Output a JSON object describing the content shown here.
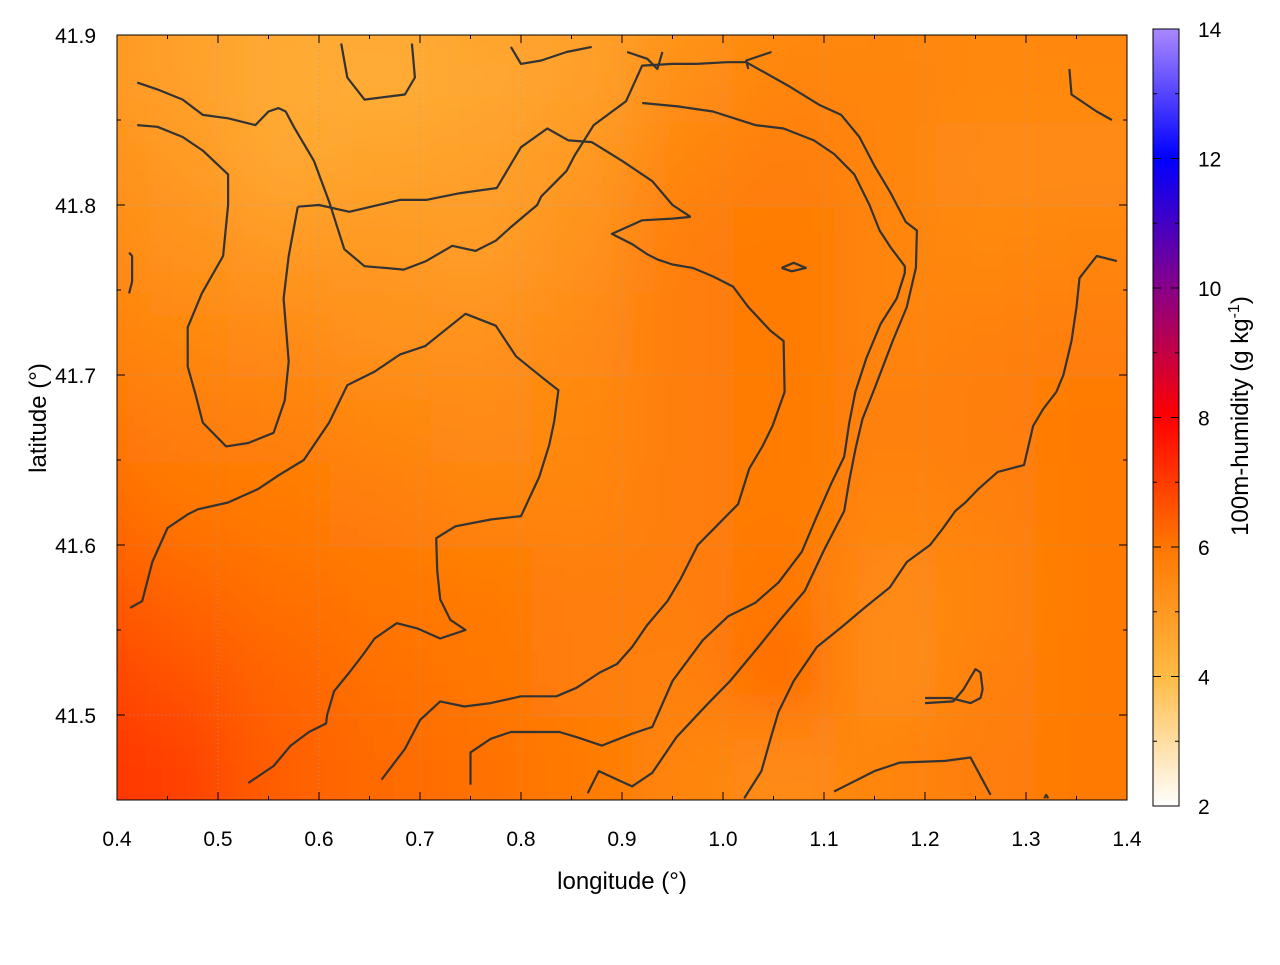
{
  "chart_data": {
    "type": "heatmap",
    "xlabel": "longitude (°)",
    "ylabel": "latitude (°)",
    "colorbar_label": "100m-humidity (g kg",
    "colorbar_label_sup": "-1",
    "colorbar_label_end": ")",
    "xlim": [
      0.4,
      1.4
    ],
    "ylim": [
      41.45,
      41.9
    ],
    "x_ticks": [
      "0.4",
      "0.5",
      "0.6",
      "0.7",
      "0.8",
      "0.9",
      "1.0",
      "1.1",
      "1.2",
      "1.3",
      "1.4"
    ],
    "y_ticks": [
      "41.5",
      "41.6",
      "41.7",
      "41.8",
      "41.9"
    ],
    "colorbar_ticks": [
      "2",
      "4",
      "6",
      "8",
      "10",
      "12",
      "14"
    ],
    "colorbar_range": [
      2,
      14
    ],
    "colormap": [
      "#ffffff",
      "#ffbb44",
      "#ff7700",
      "#ff0000",
      "#0000ff",
      "#aa88ff"
    ],
    "grid": true,
    "contour_color": "#333333",
    "field_x": [
      0.4,
      0.5,
      0.6,
      0.7,
      0.8,
      0.9,
      1.0,
      1.1,
      1.2,
      1.3,
      1.4
    ],
    "field_y": [
      41.9,
      41.85,
      41.8,
      41.75,
      41.7,
      41.65,
      41.6,
      41.55,
      41.5,
      41.45
    ],
    "field_values": [
      [
        5.0,
        4.8,
        4.6,
        4.6,
        4.7,
        4.8,
        5.1,
        5.4,
        5.5,
        5.5,
        5.6
      ],
      [
        5.1,
        4.8,
        4.5,
        4.4,
        4.6,
        4.8,
        5.3,
        5.6,
        5.6,
        5.5,
        5.5
      ],
      [
        5.3,
        5.0,
        4.6,
        4.7,
        4.8,
        5.0,
        5.6,
        5.8,
        5.6,
        5.4,
        5.4
      ],
      [
        5.5,
        5.2,
        5.0,
        5.0,
        4.9,
        5.2,
        5.8,
        5.9,
        5.6,
        5.5,
        5.6
      ],
      [
        5.7,
        5.5,
        5.4,
        5.2,
        5.2,
        5.4,
        5.8,
        5.9,
        5.6,
        5.7,
        5.8
      ],
      [
        6.0,
        5.8,
        5.7,
        5.5,
        5.4,
        5.5,
        5.8,
        5.9,
        5.7,
        5.8,
        5.9
      ],
      [
        6.3,
        6.0,
        5.9,
        5.8,
        5.6,
        5.6,
        5.8,
        5.9,
        5.6,
        5.7,
        5.9
      ],
      [
        6.6,
        6.3,
        6.1,
        6.0,
        5.9,
        5.8,
        5.8,
        6.0,
        5.4,
        5.6,
        5.9
      ],
      [
        6.9,
        6.6,
        6.3,
        6.1,
        6.0,
        5.8,
        5.7,
        6.2,
        5.3,
        5.7,
        5.9
      ],
      [
        7.2,
        6.9,
        6.4,
        6.2,
        6.1,
        5.9,
        5.6,
        5.4,
        5.6,
        5.8,
        5.9
      ]
    ],
    "contours": [
      [
        [
          0.42,
          41.872
        ],
        [
          0.44,
          41.868
        ],
        [
          0.465,
          41.862
        ],
        [
          0.485,
          41.853
        ],
        [
          0.51,
          41.851
        ],
        [
          0.537,
          41.847
        ],
        [
          0.55,
          41.855
        ],
        [
          0.56,
          41.857
        ],
        [
          0.567,
          41.855
        ],
        [
          0.575,
          41.846
        ],
        [
          0.595,
          41.826
        ],
        [
          0.61,
          41.802
        ],
        [
          0.625,
          41.774
        ],
        [
          0.645,
          41.764
        ],
        [
          0.665,
          41.763
        ],
        [
          0.684,
          41.762
        ],
        [
          0.706,
          41.767
        ],
        [
          0.732,
          41.776
        ],
        [
          0.755,
          41.773
        ],
        [
          0.775,
          41.779
        ],
        [
          0.79,
          41.787
        ],
        [
          0.802,
          41.793
        ],
        [
          0.816,
          41.8
        ],
        [
          0.82,
          41.805
        ],
        [
          0.835,
          41.814
        ],
        [
          0.845,
          41.82
        ],
        [
          0.853,
          41.829
        ],
        [
          0.872,
          41.847
        ],
        [
          0.904,
          41.861
        ],
        [
          0.92,
          41.882
        ],
        [
          0.95,
          41.883
        ],
        [
          0.974,
          41.883
        ],
        [
          1.004,
          41.884
        ],
        [
          1.023,
          41.884
        ],
        [
          1.065,
          41.87
        ],
        [
          1.095,
          41.859
        ],
        [
          1.117,
          41.853
        ],
        [
          1.135,
          41.84
        ],
        [
          1.15,
          41.823
        ],
        [
          1.166,
          41.807
        ],
        [
          1.181,
          41.79
        ],
        [
          1.192,
          41.785
        ],
        [
          1.191,
          41.763
        ],
        [
          1.182,
          41.74
        ],
        [
          1.168,
          41.72
        ],
        [
          1.15,
          41.692
        ],
        [
          1.138,
          41.674
        ],
        [
          1.131,
          41.656
        ],
        [
          1.125,
          41.638
        ],
        [
          1.12,
          41.62
        ],
        [
          1.1,
          41.597
        ],
        [
          1.081,
          41.573
        ],
        [
          1.058,
          41.557
        ],
        [
          1.035,
          41.54
        ],
        [
          1.007,
          41.52
        ],
        [
          0.984,
          41.506
        ],
        [
          0.954,
          41.487
        ],
        [
          0.93,
          41.466
        ],
        [
          0.91,
          41.458
        ],
        [
          0.877,
          41.467
        ],
        [
          0.866,
          41.454
        ]
      ],
      [
        [
          0.42,
          41.847
        ],
        [
          0.44,
          41.846
        ],
        [
          0.465,
          41.84
        ],
        [
          0.485,
          41.832
        ],
        [
          0.51,
          41.818
        ],
        [
          0.51,
          41.8
        ],
        [
          0.505,
          41.77
        ],
        [
          0.484,
          41.748
        ],
        [
          0.47,
          41.728
        ],
        [
          0.47,
          41.705
        ],
        [
          0.478,
          41.688
        ],
        [
          0.485,
          41.672
        ],
        [
          0.508,
          41.658
        ],
        [
          0.53,
          41.66
        ],
        [
          0.555,
          41.666
        ],
        [
          0.566,
          41.685
        ],
        [
          0.57,
          41.708
        ],
        [
          0.565,
          41.745
        ],
        [
          0.57,
          41.77
        ],
        [
          0.579,
          41.799
        ]
      ],
      [
        [
          0.579,
          41.799
        ],
        [
          0.6,
          41.8
        ],
        [
          0.63,
          41.796
        ],
        [
          0.68,
          41.803
        ],
        [
          0.706,
          41.803
        ],
        [
          0.74,
          41.807
        ],
        [
          0.776,
          41.81
        ],
        [
          0.8,
          41.834
        ],
        [
          0.826,
          41.845
        ],
        [
          0.847,
          41.838
        ],
        [
          0.87,
          41.837
        ],
        [
          0.9,
          41.826
        ],
        [
          0.93,
          41.814
        ],
        [
          0.95,
          41.8
        ],
        [
          0.968,
          41.793
        ]
      ],
      [
        [
          0.968,
          41.793
        ],
        [
          0.95,
          41.792
        ],
        [
          0.92,
          41.791
        ],
        [
          0.89,
          41.783
        ],
        [
          0.91,
          41.777
        ],
        [
          0.925,
          41.771
        ],
        [
          0.935,
          41.768
        ],
        [
          0.95,
          41.765
        ],
        [
          0.97,
          41.763
        ],
        [
          0.99,
          41.758
        ],
        [
          1.01,
          41.752
        ],
        [
          1.025,
          41.74
        ],
        [
          1.047,
          41.726
        ],
        [
          1.06,
          41.72
        ],
        [
          1.061,
          41.69
        ],
        [
          1.049,
          41.67
        ],
        [
          1.039,
          41.658
        ],
        [
          1.026,
          41.645
        ],
        [
          1.015,
          41.624
        ],
        [
          1.005,
          41.618
        ],
        [
          0.99,
          41.609
        ],
        [
          0.975,
          41.6
        ],
        [
          0.958,
          41.58
        ],
        [
          0.945,
          41.567
        ],
        [
          0.925,
          41.553
        ],
        [
          0.91,
          41.54
        ],
        [
          0.895,
          41.53
        ],
        [
          0.878,
          41.525
        ],
        [
          0.855,
          41.516
        ],
        [
          0.835,
          41.511
        ],
        [
          0.8,
          41.511
        ],
        [
          0.77,
          41.507
        ],
        [
          0.744,
          41.505
        ],
        [
          0.72,
          41.508
        ],
        [
          0.7,
          41.497
        ],
        [
          0.685,
          41.48
        ],
        [
          0.662,
          41.462
        ]
      ],
      [
        [
          0.413,
          41.563
        ],
        [
          0.425,
          41.567
        ],
        [
          0.435,
          41.59
        ],
        [
          0.45,
          41.61
        ],
        [
          0.47,
          41.618
        ],
        [
          0.48,
          41.621
        ],
        [
          0.51,
          41.625
        ],
        [
          0.54,
          41.633
        ],
        [
          0.56,
          41.641
        ],
        [
          0.585,
          41.65
        ],
        [
          0.61,
          41.672
        ],
        [
          0.628,
          41.694
        ],
        [
          0.655,
          41.702
        ],
        [
          0.68,
          41.712
        ],
        [
          0.705,
          41.717
        ],
        [
          0.724,
          41.726
        ],
        [
          0.745,
          41.736
        ],
        [
          0.775,
          41.729
        ],
        [
          0.795,
          41.711
        ],
        [
          0.82,
          41.699
        ],
        [
          0.837,
          41.691
        ],
        [
          0.833,
          41.673
        ],
        [
          0.828,
          41.659
        ],
        [
          0.818,
          41.64
        ],
        [
          0.8,
          41.617
        ],
        [
          0.77,
          41.615
        ],
        [
          0.735,
          41.611
        ],
        [
          0.716,
          41.604
        ],
        [
          0.717,
          41.585
        ],
        [
          0.72,
          41.568
        ],
        [
          0.73,
          41.556
        ],
        [
          0.745,
          41.55
        ],
        [
          0.72,
          41.545
        ],
        [
          0.697,
          41.551
        ],
        [
          0.677,
          41.554
        ],
        [
          0.655,
          41.545
        ],
        [
          0.643,
          41.535
        ],
        [
          0.63,
          41.525
        ],
        [
          0.615,
          41.514
        ],
        [
          0.608,
          41.5
        ],
        [
          0.607,
          41.495
        ],
        [
          0.59,
          41.49
        ],
        [
          0.572,
          41.482
        ],
        [
          0.555,
          41.47
        ],
        [
          0.53,
          41.46
        ]
      ],
      [
        [
          0.75,
          41.459
        ],
        [
          0.75,
          41.478
        ],
        [
          0.77,
          41.486
        ],
        [
          0.79,
          41.49
        ],
        [
          0.838,
          41.49
        ],
        [
          0.855,
          41.487
        ],
        [
          0.88,
          41.482
        ],
        [
          0.91,
          41.489
        ],
        [
          0.93,
          41.493
        ],
        [
          0.95,
          41.52
        ],
        [
          0.98,
          41.544
        ],
        [
          1.005,
          41.558
        ],
        [
          1.032,
          41.566
        ],
        [
          1.055,
          41.578
        ],
        [
          1.078,
          41.596
        ],
        [
          1.093,
          41.617
        ],
        [
          1.107,
          41.636
        ],
        [
          1.12,
          41.652
        ],
        [
          1.125,
          41.672
        ],
        [
          1.131,
          41.69
        ],
        [
          1.142,
          41.71
        ],
        [
          1.156,
          41.73
        ],
        [
          1.172,
          41.745
        ],
        [
          1.18,
          41.76
        ],
        [
          1.18,
          41.764
        ],
        [
          1.166,
          41.775
        ],
        [
          1.155,
          41.785
        ],
        [
          1.145,
          41.8
        ],
        [
          1.13,
          41.818
        ],
        [
          1.11,
          41.83
        ],
        [
          1.09,
          41.838
        ],
        [
          1.06,
          41.845
        ],
        [
          1.032,
          41.847
        ],
        [
          0.99,
          41.855
        ],
        [
          0.955,
          41.858
        ],
        [
          0.92,
          41.86
        ]
      ],
      [
        [
          1.021,
          41.451
        ],
        [
          1.038,
          41.467
        ],
        [
          1.048,
          41.488
        ],
        [
          1.055,
          41.502
        ],
        [
          1.07,
          41.52
        ],
        [
          1.093,
          41.54
        ],
        [
          1.118,
          41.552
        ],
        [
          1.14,
          41.563
        ],
        [
          1.165,
          41.575
        ],
        [
          1.182,
          41.59
        ],
        [
          1.205,
          41.6
        ],
        [
          1.218,
          41.61
        ],
        [
          1.23,
          41.62
        ],
        [
          1.24,
          41.625
        ],
        [
          1.253,
          41.633
        ],
        [
          1.272,
          41.643
        ],
        [
          1.298,
          41.647
        ],
        [
          1.307,
          41.67
        ],
        [
          1.317,
          41.68
        ],
        [
          1.33,
          41.69
        ],
        [
          1.337,
          41.7
        ],
        [
          1.345,
          41.72
        ],
        [
          1.35,
          41.74
        ],
        [
          1.353,
          41.757
        ],
        [
          1.37,
          41.77
        ],
        [
          1.39,
          41.767
        ]
      ],
      [
        [
          1.11,
          41.455
        ],
        [
          1.13,
          41.461
        ],
        [
          1.15,
          41.467
        ],
        [
          1.175,
          41.472
        ],
        [
          1.22,
          41.473
        ],
        [
          1.245,
          41.475
        ],
        [
          1.265,
          41.453
        ]
      ],
      [
        [
          1.2,
          41.51
        ],
        [
          1.225,
          41.51
        ],
        [
          1.245,
          41.507
        ],
        [
          1.255,
          41.51
        ],
        [
          1.257,
          41.515
        ],
        [
          1.255,
          41.525
        ],
        [
          1.25,
          41.527
        ],
        [
          1.238,
          41.515
        ],
        [
          1.228,
          41.508
        ],
        [
          1.2,
          41.507
        ]
      ],
      [
        [
          0.622,
          41.895
        ],
        [
          0.628,
          41.875
        ],
        [
          0.645,
          41.862
        ],
        [
          0.685,
          41.865
        ],
        [
          0.695,
          41.875
        ],
        [
          0.692,
          41.895
        ]
      ],
      [
        [
          0.79,
          41.893
        ],
        [
          0.8,
          41.883
        ],
        [
          0.82,
          41.885
        ],
        [
          0.845,
          41.89
        ],
        [
          0.87,
          41.893
        ]
      ],
      [
        [
          0.905,
          41.89
        ],
        [
          0.925,
          41.886
        ],
        [
          0.935,
          41.88
        ],
        [
          0.94,
          41.89
        ]
      ],
      [
        [
          1.025,
          41.88
        ],
        [
          1.023,
          41.885
        ],
        [
          1.048,
          41.89
        ]
      ],
      [
        [
          1.343,
          41.88
        ],
        [
          1.345,
          41.865
        ],
        [
          1.37,
          41.855
        ],
        [
          1.385,
          41.85
        ]
      ],
      [
        [
          0.412,
          41.748
        ],
        [
          0.415,
          41.755
        ],
        [
          0.415,
          41.77
        ],
        [
          0.412,
          41.772
        ]
      ],
      [
        [
          1.058,
          41.763
        ],
        [
          1.068,
          41.761
        ],
        [
          1.082,
          41.763
        ],
        [
          1.07,
          41.766
        ],
        [
          1.058,
          41.763
        ]
      ],
      [
        [
          1.318,
          41.451
        ],
        [
          1.32,
          41.453
        ],
        [
          1.322,
          41.451
        ]
      ]
    ]
  }
}
